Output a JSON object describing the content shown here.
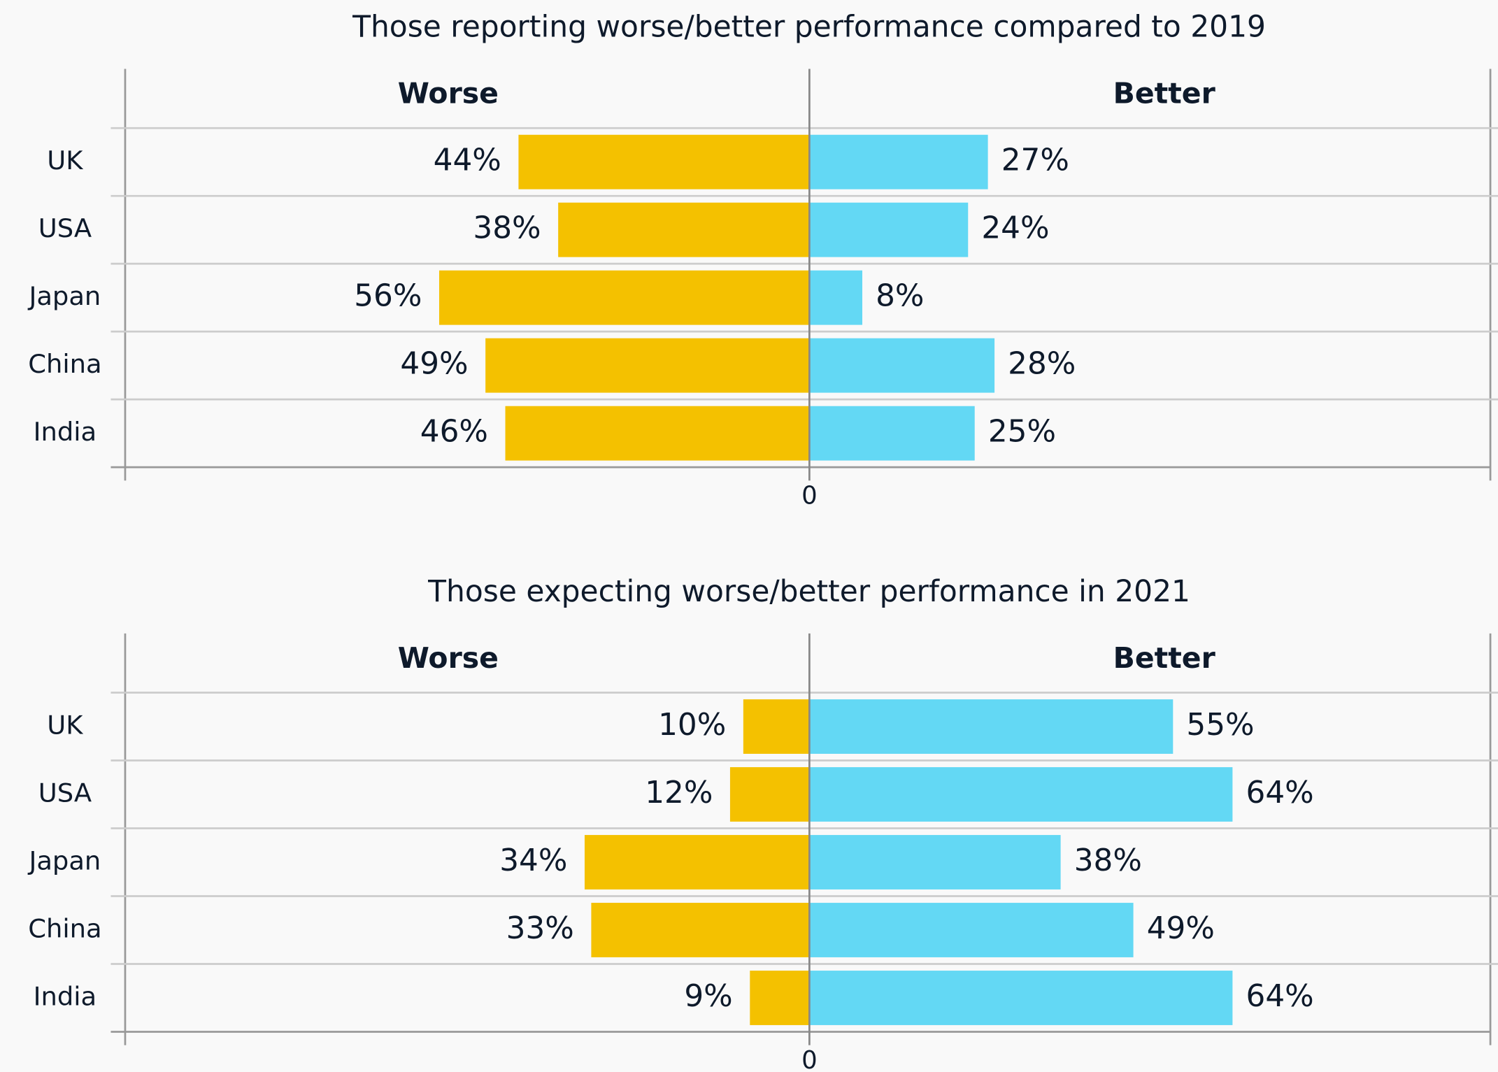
{
  "chart_data": [
    {
      "type": "diverging-bar",
      "title": "Those reporting worse/better performance compared to 2019",
      "categories": [
        "UK",
        "USA",
        "Japan",
        "China",
        "India"
      ],
      "series": [
        {
          "name": "Worse",
          "color": "#f4c100",
          "side": "left",
          "values": [
            44,
            38,
            56,
            49,
            46
          ],
          "value_labels": [
            "44%",
            "38%",
            "56%",
            "49%",
            "46%"
          ]
        },
        {
          "name": "Better",
          "color": "#63d8f4",
          "side": "right",
          "values": [
            27,
            24,
            8,
            28,
            25
          ],
          "value_labels": [
            "27%",
            "24%",
            "8%",
            "28%",
            "25%"
          ]
        }
      ],
      "xlim": [
        -103.5,
        103
      ],
      "xticks": [
        0
      ],
      "grid": true
    },
    {
      "type": "diverging-bar",
      "title": "Those expecting worse/better performance in 2021",
      "categories": [
        "UK",
        "USA",
        "Japan",
        "China",
        "India"
      ],
      "series": [
        {
          "name": "Worse",
          "color": "#f4c100",
          "side": "left",
          "values": [
            10,
            12,
            34,
            33,
            9
          ],
          "value_labels": [
            "10%",
            "12%",
            "34%",
            "33%",
            "9%"
          ]
        },
        {
          "name": "Better",
          "color": "#63d8f4",
          "side": "right",
          "values": [
            55,
            64,
            38,
            49,
            64
          ],
          "value_labels": [
            "55%",
            "64%",
            "38%",
            "49%",
            "64%"
          ]
        }
      ],
      "xlim": [
        -103.5,
        103
      ],
      "xticks": [
        0
      ],
      "grid": true
    }
  ]
}
